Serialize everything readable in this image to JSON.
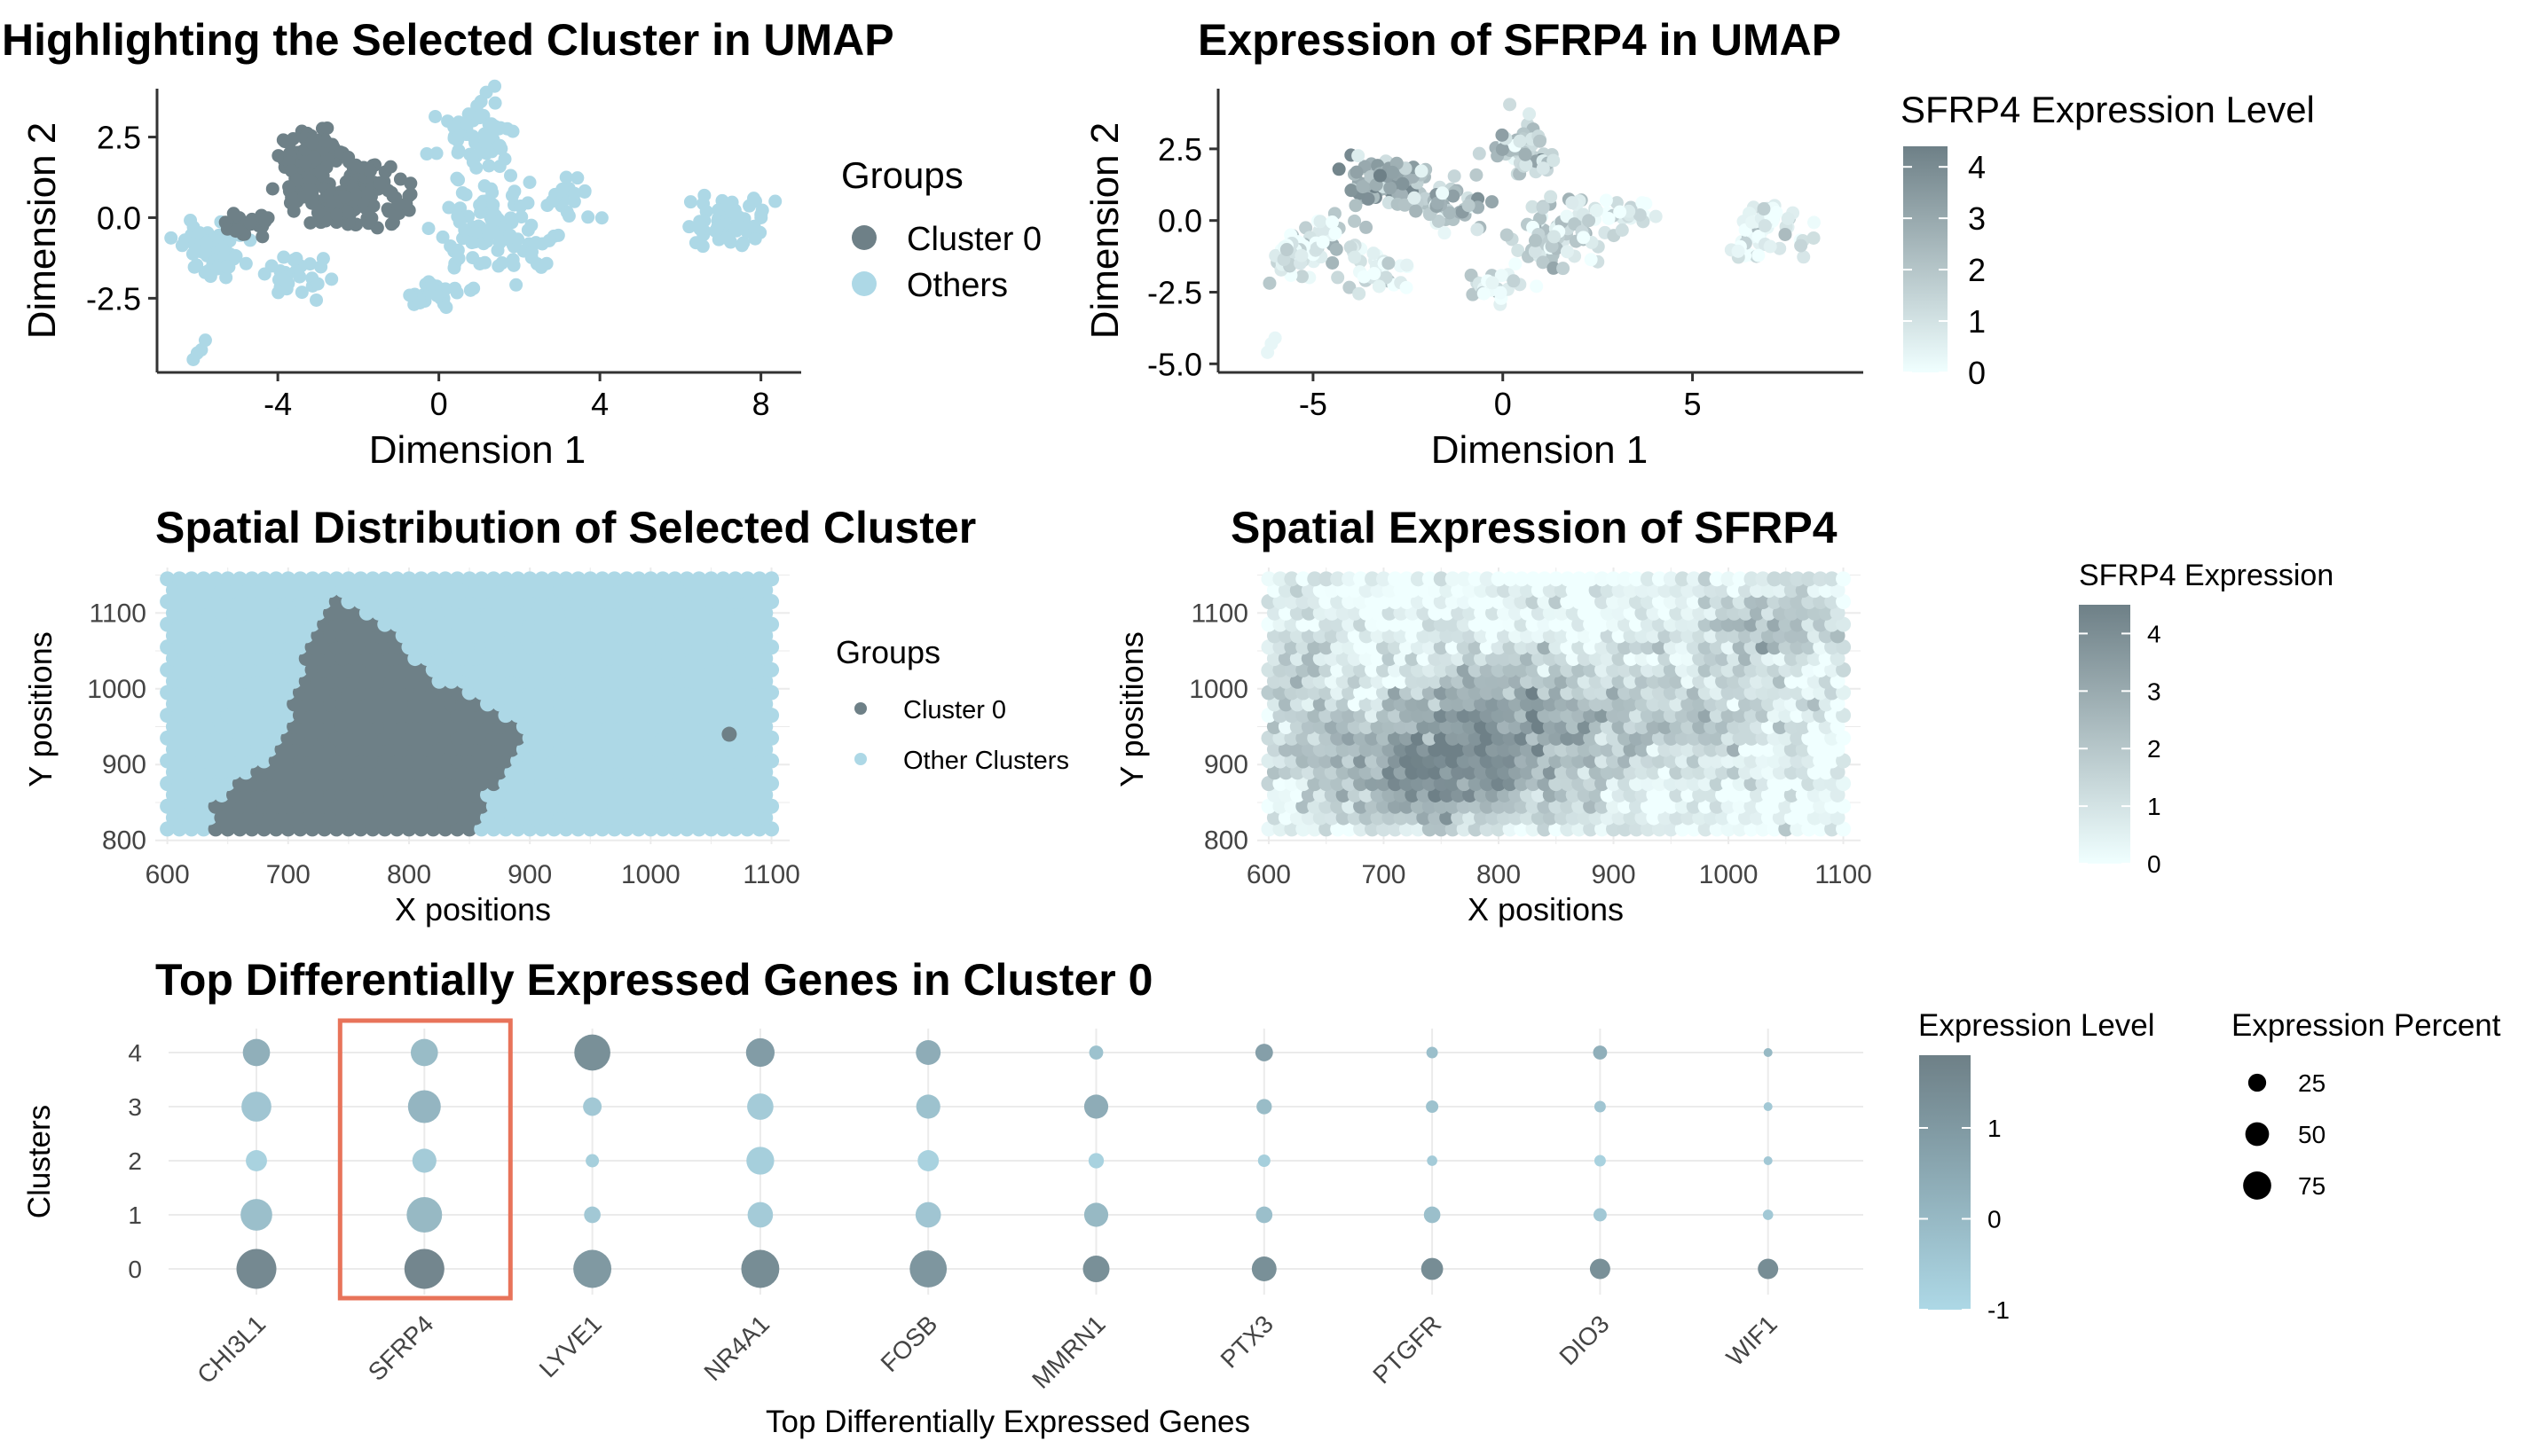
{
  "colors": {
    "cluster": "#6e8087",
    "others": "#add8e6",
    "gradient_low": "#f0ffff",
    "gradient_high": "#6e8087",
    "highlight_box": "#e8735a",
    "grid": "#ebebeb"
  },
  "chart_data": [
    {
      "id": "umap_cluster",
      "type": "scatter",
      "title": "Highlighting the Selected Cluster in UMAP",
      "xlabel": "Dimension 1",
      "ylabel": "Dimension 2",
      "xlim": [
        -7,
        9
      ],
      "ylim": [
        -4.8,
        4
      ],
      "xticks": [
        -4,
        0,
        4,
        8
      ],
      "xtick_labels": [
        "-4",
        "0",
        "4",
        "8"
      ],
      "yticks": [
        -2.5,
        0,
        2.5
      ],
      "ytick_labels": [
        "-2.5",
        "0.0",
        "2.5"
      ],
      "grid": false,
      "legend": {
        "title": "Groups",
        "placement": "right",
        "entries": [
          {
            "label": "Cluster 0",
            "color": "#6e8087"
          },
          {
            "label": "Others",
            "color": "#add8e6"
          }
        ]
      },
      "series": [
        {
          "name": "Cluster 0",
          "color": "#6e8087",
          "regions": [
            [
              -3.2,
              1.6,
              0.8,
              1.2,
              110
            ],
            [
              -1.7,
              0.8,
              0.9,
              1.2,
              70
            ],
            [
              -4.6,
              -0.2,
              0.7,
              0.5,
              25
            ],
            [
              -2.5,
              0.3,
              1.0,
              0.8,
              45
            ]
          ]
        },
        {
          "name": "Others",
          "color": "#add8e6",
          "regions": [
            [
              -5.6,
              -1.0,
              0.8,
              0.8,
              65
            ],
            [
              -3.7,
              -1.8,
              1.0,
              0.6,
              30
            ],
            [
              1.0,
              2.6,
              1.0,
              1.2,
              55
            ],
            [
              1.5,
              -0.5,
              1.4,
              1.3,
              90
            ],
            [
              0.0,
              -2.4,
              0.8,
              0.5,
              25
            ],
            [
              3.2,
              0.6,
              0.8,
              0.6,
              20
            ],
            [
              7.0,
              -0.2,
              1.1,
              0.9,
              60
            ]
          ],
          "points": [
            [
              -6.1,
              -4.4
            ],
            [
              -6.0,
              -4.2
            ],
            [
              -5.9,
              -4.1
            ],
            [
              -5.8,
              -3.8
            ]
          ]
        }
      ]
    },
    {
      "id": "umap_expression",
      "type": "scatter",
      "title": "Expression of SFRP4 in UMAP",
      "xlabel": "Dimension 1",
      "ylabel": "Dimension 2",
      "xlim": [
        -7.5,
        9.5
      ],
      "ylim": [
        -5.3,
        4.6
      ],
      "xticks": [
        -5,
        0,
        5
      ],
      "xtick_labels": [
        "-5",
        "0",
        "5"
      ],
      "yticks": [
        -5,
        -2.5,
        0,
        2.5
      ],
      "ytick_labels": [
        "-5.0",
        "-2.5",
        "0.0",
        "2.5"
      ],
      "grid": false,
      "colorbar": {
        "title": "SFRP4 Expression Level",
        "min": 0,
        "max": 4.4,
        "ticks": [
          0,
          1,
          2,
          3,
          4
        ],
        "tick_labels": [
          "0",
          "1",
          "2",
          "3",
          "4"
        ]
      },
      "regions": [
        [
          -3.0,
          1.5,
          1.0,
          1.0,
          90,
          2.6
        ],
        [
          -1.5,
          0.6,
          1.0,
          1.0,
          60,
          2.0
        ],
        [
          -4.5,
          -0.6,
          1.2,
          0.8,
          40,
          1.0
        ],
        [
          -5.6,
          -1.2,
          0.7,
          0.8,
          35,
          0.4
        ],
        [
          -3.5,
          -1.8,
          1.0,
          0.6,
          30,
          0.5
        ],
        [
          0.6,
          2.5,
          0.9,
          1.1,
          50,
          1.5
        ],
        [
          1.5,
          -0.4,
          1.3,
          1.3,
          80,
          1.3
        ],
        [
          -0.2,
          -2.3,
          0.8,
          0.5,
          25,
          0.8
        ],
        [
          3.2,
          0.3,
          1.0,
          0.6,
          20,
          0.3
        ],
        [
          7.0,
          -0.4,
          1.1,
          1.0,
          55,
          0.5
        ]
      ],
      "points": [
        [
          -6.2,
          -4.6,
          0.3
        ],
        [
          -6.1,
          -4.3,
          0.3
        ],
        [
          -6.0,
          -4.1,
          0.3
        ]
      ]
    },
    {
      "id": "spatial_cluster",
      "type": "scatter",
      "title": "Spatial Distribution of Selected Cluster",
      "xlabel": "X positions",
      "ylabel": "Y positions",
      "xlim": [
        590,
        1115
      ],
      "ylim": [
        795,
        1160
      ],
      "xticks": [
        600,
        700,
        800,
        900,
        1000,
        1100
      ],
      "xtick_labels": [
        "600",
        "700",
        "800",
        "900",
        "1000",
        "1100"
      ],
      "yticks": [
        800,
        900,
        1000,
        1100
      ],
      "ytick_labels": [
        "800",
        "900",
        "1000",
        "1100"
      ],
      "grid": true,
      "lattice": {
        "x_start": 600,
        "x_end": 1100,
        "x_step": 10,
        "y_start": 815,
        "y_end": 1150,
        "y_step": 15
      },
      "legend": {
        "title": "Groups",
        "placement": "right",
        "entries": [
          {
            "label": "Cluster 0",
            "color": "#6e8087"
          },
          {
            "label": "Other Clusters",
            "color": "#add8e6"
          }
        ]
      },
      "cluster_polygon": [
        [
          735,
          1120
        ],
        [
          780,
          1080
        ],
        [
          800,
          1050
        ],
        [
          820,
          1010
        ],
        [
          850,
          990
        ],
        [
          880,
          960
        ],
        [
          900,
          930
        ],
        [
          880,
          900
        ],
        [
          865,
          860
        ],
        [
          860,
          815
        ],
        [
          640,
          815
        ],
        [
          640,
          850
        ],
        [
          660,
          880
        ],
        [
          680,
          900
        ],
        [
          700,
          960
        ],
        [
          715,
          1050
        ]
      ],
      "cluster_extra": [
        [
          1065,
          940
        ]
      ]
    },
    {
      "id": "spatial_expression",
      "type": "scatter",
      "title": "Spatial Expression of SFRP4",
      "xlabel": "X positions",
      "ylabel": "Y positions",
      "xlim": [
        590,
        1115
      ],
      "ylim": [
        795,
        1160
      ],
      "xticks": [
        600,
        700,
        800,
        900,
        1000,
        1100
      ],
      "xtick_labels": [
        "600",
        "700",
        "800",
        "900",
        "1000",
        "1100"
      ],
      "yticks": [
        800,
        900,
        1000,
        1100
      ],
      "ytick_labels": [
        "800",
        "900",
        "1000",
        "1100"
      ],
      "grid": true,
      "lattice": {
        "x_start": 600,
        "x_end": 1100,
        "x_step": 10,
        "y_start": 815,
        "y_end": 1150,
        "y_step": 15
      },
      "colorbar": {
        "title": "SFRP4 Expression",
        "min": 0,
        "max": 4.5,
        "ticks": [
          0,
          1,
          2,
          3,
          4
        ],
        "tick_labels": [
          "0",
          "1",
          "2",
          "3",
          "4"
        ]
      },
      "hotspots": [
        [
          800,
          940,
          120,
          100,
          3.4
        ],
        [
          730,
          880,
          80,
          70,
          2.2
        ],
        [
          1040,
          1080,
          70,
          60,
          2.0
        ],
        [
          980,
          960,
          60,
          60,
          1.4
        ],
        [
          620,
          1000,
          40,
          120,
          1.2
        ]
      ]
    },
    {
      "id": "dotplot",
      "type": "dot",
      "title": "Top Differentially Expressed Genes in Cluster 0",
      "xlabel": "Top Differentially Expressed Genes",
      "ylabel": "Clusters",
      "genes": [
        "CHI3L1",
        "SFRP4",
        "LYVE1",
        "NR4A1",
        "FOSB",
        "MMRN1",
        "PTX3",
        "PTGFR",
        "DIO3",
        "WIF1"
      ],
      "clusters": [
        "0",
        "1",
        "2",
        "3",
        "4"
      ],
      "highlighted_gene": "SFRP4",
      "grid": true,
      "color_legend": {
        "title": "Expression Level",
        "min": -1,
        "max": 1.8,
        "ticks": [
          -1,
          0,
          1
        ],
        "tick_labels": [
          "-1",
          "0",
          "1"
        ]
      },
      "size_legend": {
        "title": "Expression Percent",
        "values": [
          25,
          50,
          75
        ],
        "labels": [
          "25",
          "50",
          "75"
        ]
      },
      "percent": [
        [
          95,
          55,
          20,
          48,
          38
        ],
        [
          95,
          72,
          28,
          60,
          38
        ],
        [
          85,
          10,
          5,
          14,
          75
        ],
        [
          85,
          32,
          40,
          35,
          43
        ],
        [
          80,
          32,
          20,
          28,
          30
        ],
        [
          36,
          28,
          8,
          28,
          6
        ],
        [
          30,
          10,
          4,
          8,
          12
        ],
        [
          22,
          10,
          2,
          4,
          3
        ],
        [
          18,
          5,
          3,
          3,
          6
        ],
        [
          18,
          2,
          1,
          1,
          1
        ]
      ],
      "level": [
        [
          1.5,
          -0.2,
          -0.8,
          -0.4,
          0.3
        ],
        [
          1.6,
          0.0,
          -0.6,
          0.1,
          -0.1
        ],
        [
          1.0,
          -0.5,
          -0.7,
          -0.5,
          1.3
        ],
        [
          1.4,
          -0.6,
          -0.7,
          -0.6,
          0.9
        ],
        [
          1.1,
          -0.4,
          -0.8,
          -0.3,
          0.4
        ],
        [
          1.3,
          0.0,
          -0.8,
          0.4,
          -0.3
        ],
        [
          1.3,
          -0.2,
          -0.7,
          -0.1,
          0.8
        ],
        [
          1.4,
          -0.2,
          -0.6,
          -0.3,
          -0.2
        ],
        [
          1.3,
          -0.5,
          -0.8,
          -0.4,
          0.3
        ],
        [
          1.4,
          -0.5,
          -0.5,
          -0.5,
          0.0
        ]
      ]
    }
  ]
}
